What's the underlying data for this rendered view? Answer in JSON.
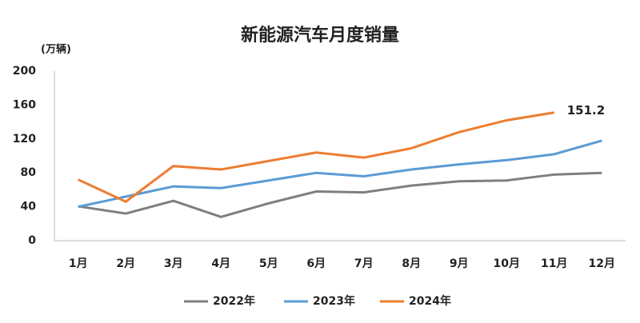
{
  "chart_data": {
    "type": "line",
    "title": "新能源汽车月度销量",
    "y_axis_label": "(万辆)",
    "categories": [
      "1月",
      "2月",
      "3月",
      "4月",
      "5月",
      "6月",
      "7月",
      "8月",
      "9月",
      "10月",
      "11月",
      "12月"
    ],
    "series": [
      {
        "name": "2022年",
        "color": "#7f7f7f",
        "values": [
          40.5,
          32,
          47,
          28,
          44,
          58,
          57,
          65,
          70,
          71,
          78,
          80
        ]
      },
      {
        "name": "2023年",
        "color": "#5b9bd5",
        "values": [
          40,
          52,
          64,
          62,
          71,
          80,
          76,
          84,
          90,
          95,
          102,
          118
        ]
      },
      {
        "name": "2024年",
        "color": "#ed7d31",
        "values": [
          72,
          46,
          88,
          84,
          94,
          104,
          98,
          109,
          128,
          142,
          151.2,
          null
        ]
      }
    ],
    "annotations": [
      {
        "text": "151.2",
        "series": 2,
        "index": 10
      }
    ],
    "ylim": [
      0,
      200
    ],
    "yticks": [
      0,
      40,
      80,
      120,
      160,
      200
    ],
    "grid": false,
    "legend": "bottom"
  }
}
